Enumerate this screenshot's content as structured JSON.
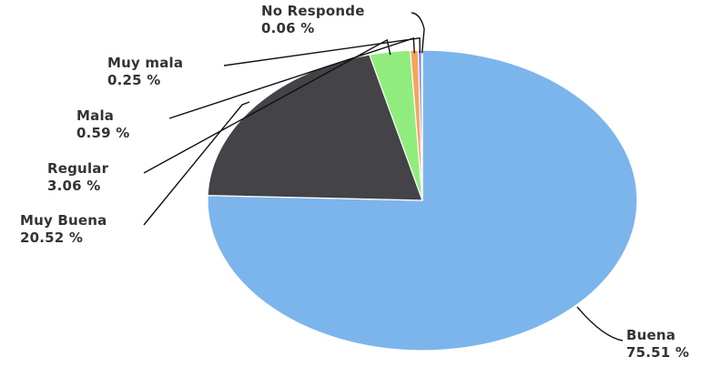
{
  "chart_data": {
    "type": "pie",
    "title": "",
    "slices": [
      {
        "label": "Buena",
        "value": 75.51,
        "value_text": "75.51 %",
        "color": "#7cb5ec"
      },
      {
        "label": "Muy Buena",
        "value": 20.52,
        "value_text": "20.52 %",
        "color": "#434348"
      },
      {
        "label": "Regular",
        "value": 3.06,
        "value_text": "3.06 %",
        "color": "#90ed7d"
      },
      {
        "label": "Mala",
        "value": 0.59,
        "value_text": "0.59 %",
        "color": "#f7a35c"
      },
      {
        "label": "Muy mala",
        "value": 0.25,
        "value_text": "0.25 %",
        "color": "#8085e9"
      },
      {
        "label": "No Responde",
        "value": 0.06,
        "value_text": "0.06 %",
        "color": "#f15c80"
      }
    ],
    "start_direction": "top (12 o'clock), clockwise",
    "legend": "none",
    "data_labels": "outside with leader lines"
  }
}
